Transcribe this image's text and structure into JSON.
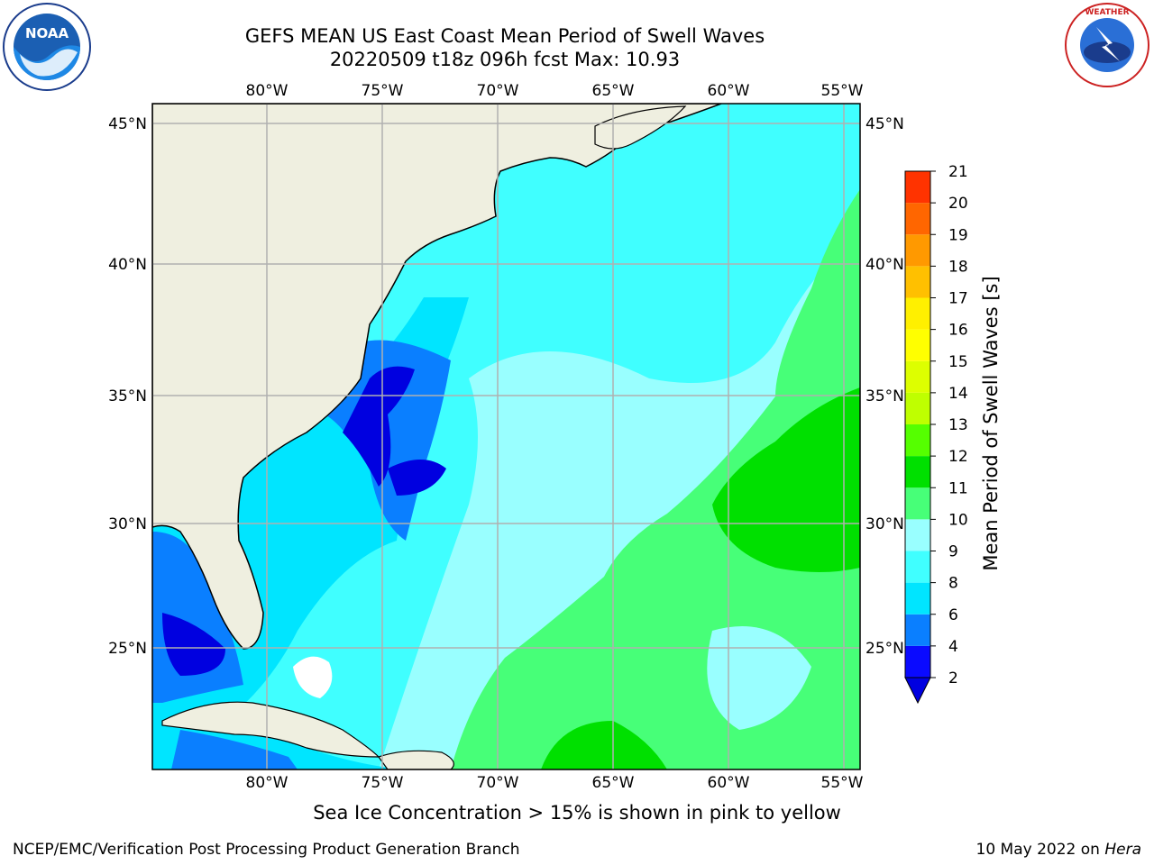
{
  "header": {
    "title_line1": "GEFS MEAN US East Coast Mean Period of Swell Waves",
    "title_line2": "20220509 t18z 096h fcst   Max: 10.93"
  },
  "logos": {
    "left_icon": "noaa-logo",
    "right_icon": "national-weather-service-logo"
  },
  "map": {
    "lon_labels": [
      "80°W",
      "75°W",
      "70°W",
      "65°W",
      "60°W",
      "55°W"
    ],
    "lat_labels": [
      "45°N",
      "40°N",
      "35°N",
      "30°N",
      "25°N"
    ],
    "lon_range": [
      -85,
      -54.5
    ],
    "lat_range": [
      20.5,
      46
    ],
    "land_color": "#efefe0",
    "grid_color": "#b0b0b0"
  },
  "colorbar": {
    "label": "Mean Period of Swell Waves [s]",
    "ticks": [
      "2",
      "4",
      "6",
      "8",
      "9",
      "10",
      "11",
      "12",
      "13",
      "14",
      "15",
      "16",
      "17",
      "18",
      "19",
      "20",
      "21"
    ],
    "colors": [
      "#0a0aff",
      "#0a7fff",
      "#00e5ff",
      "#40ffff",
      "#99ffff",
      "#47ff78",
      "#00e000",
      "#55ff00",
      "#bfff00",
      "#ddff00",
      "#ffff00",
      "#fff000",
      "#ffc000",
      "#ff9900",
      "#ff6600",
      "#ff3300",
      "#ff0000"
    ],
    "extend_color": "#0000e0"
  },
  "footer": {
    "caption": "Sea Ice Concentration > 15% is shown in pink to yellow",
    "credit": "NCEP/EMC/Verification Post Processing Product Generation Branch",
    "date_prefix": "10 May 2022 on ",
    "machine": "Hera"
  }
}
